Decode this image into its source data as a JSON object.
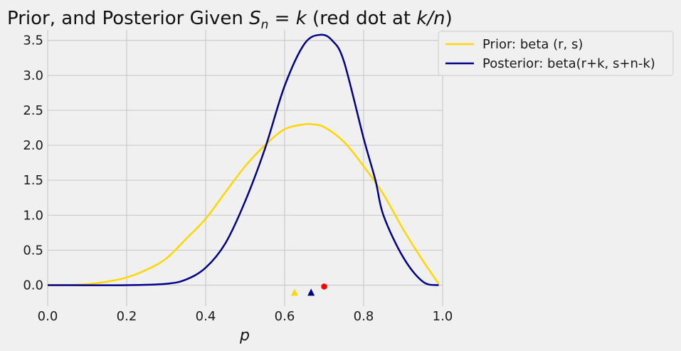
{
  "chart_data": {
    "type": "line",
    "title": {
      "prefix": "Prior, and Posterior Given ",
      "S": "S",
      "sub_n": "n",
      "eq": " = ",
      "k": "k",
      "mid": " (red dot at ",
      "kn": "k/n",
      "suffix": ")"
    },
    "xlabel": "p",
    "ylabel": "",
    "xlim": [
      0.0,
      1.0
    ],
    "ylim": [
      -0.3,
      3.65
    ],
    "grid": true,
    "xticks": [
      "0.0",
      "0.2",
      "0.4",
      "0.6",
      "0.8",
      "1.0"
    ],
    "yticks": [
      "0.0",
      "0.5",
      "1.0",
      "1.5",
      "2.0",
      "2.5",
      "3.0",
      "3.5"
    ],
    "legend_position": "outside-top-right",
    "series": [
      {
        "name": "Prior: beta (r, s)",
        "color": "#FFD700",
        "x": [
          0.0,
          0.05,
          0.1,
          0.15,
          0.2,
          0.25,
          0.3,
          0.35,
          0.4,
          0.45,
          0.5,
          0.55,
          0.6,
          0.65,
          0.67,
          0.7,
          0.75,
          0.8,
          0.85,
          0.9,
          0.95,
          0.99
        ],
        "y": [
          0.0,
          0.001,
          0.015,
          0.05,
          0.11,
          0.22,
          0.38,
          0.66,
          0.95,
          1.33,
          1.7,
          2.0,
          2.23,
          2.3,
          2.3,
          2.26,
          2.05,
          1.7,
          1.3,
          0.8,
          0.35,
          0.02
        ]
      },
      {
        "name": "Posterior: beta(r+k, s+n-k)",
        "color": "#00008B",
        "x": [
          0.0,
          0.2,
          0.3,
          0.35,
          0.4,
          0.45,
          0.5,
          0.55,
          0.6,
          0.65,
          0.69,
          0.72,
          0.75,
          0.8,
          0.83,
          0.85,
          0.9,
          0.95,
          0.99
        ],
        "y": [
          0.0,
          0.0,
          0.02,
          0.08,
          0.25,
          0.6,
          1.2,
          1.95,
          2.85,
          3.45,
          3.58,
          3.5,
          3.2,
          2.1,
          1.5,
          1.0,
          0.4,
          0.05,
          0.0
        ]
      }
    ],
    "markers": [
      {
        "label": "prior mean",
        "shape": "triangle",
        "color": "#FFD700",
        "x": 0.625,
        "y": -0.1
      },
      {
        "label": "posterior mean",
        "shape": "triangle",
        "color": "#00008B",
        "x": 0.667,
        "y": -0.1
      },
      {
        "label": "k/n",
        "shape": "dot",
        "color": "#FF0000",
        "x": 0.7,
        "y": -0.02
      }
    ]
  }
}
